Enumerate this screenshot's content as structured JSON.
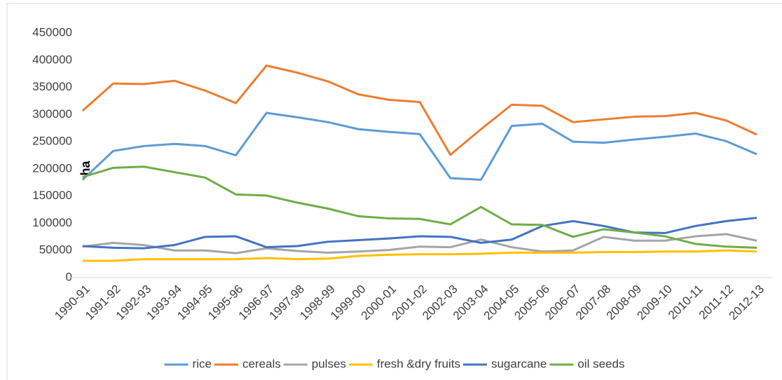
{
  "chart_data": {
    "type": "line",
    "y_label": "ha",
    "categories": [
      "1990-91",
      "1991-92",
      "1992-93",
      "1993-94",
      "1994-95",
      "1995-96",
      "1996-97",
      "1997-98",
      "1998-99",
      "1999-00",
      "2000-01",
      "2001-02",
      "2002-03",
      "2003-04",
      "2004-05",
      "2005-06",
      "2006-07",
      "2007-08",
      "2008-09",
      "2009-10",
      "2010-11",
      "2011-12",
      "2012-13"
    ],
    "series": [
      {
        "name": "rice",
        "color": "#5b9bd5",
        "values": [
          180000,
          233000,
          242000,
          246000,
          242000,
          225000,
          303000,
          295000,
          286000,
          273000,
          268000,
          264000,
          183000,
          180000,
          279000,
          283000,
          250000,
          248000,
          254000,
          259000,
          265000,
          251000,
          227000
        ]
      },
      {
        "name": "cereals",
        "color": "#ed7d31",
        "values": [
          307000,
          357000,
          356000,
          362000,
          344000,
          321000,
          390000,
          377000,
          361000,
          337000,
          327000,
          323000,
          226000,
          273000,
          318000,
          316000,
          286000,
          291000,
          296000,
          297000,
          303000,
          289000,
          263000
        ]
      },
      {
        "name": "pulses",
        "color": "#a5a5a5",
        "values": [
          57000,
          64000,
          60000,
          50000,
          50000,
          45000,
          54000,
          49000,
          46000,
          48000,
          51000,
          57000,
          56000,
          70000,
          56000,
          48000,
          50000,
          75000,
          68000,
          68000,
          76000,
          80000,
          68000
        ]
      },
      {
        "name": "fresh &dry fruits",
        "color": "#ffc000",
        "values": [
          31000,
          31000,
          34000,
          34000,
          34000,
          34000,
          36000,
          34000,
          35000,
          40000,
          42000,
          43000,
          43000,
          44000,
          46000,
          46000,
          46000,
          47000,
          47000,
          48000,
          48000,
          50000,
          48000
        ]
      },
      {
        "name": "sugarcane",
        "color": "#4472c4",
        "values": [
          58000,
          55000,
          54000,
          60000,
          75000,
          76000,
          56000,
          58000,
          66000,
          69000,
          72000,
          76000,
          75000,
          64000,
          70000,
          95000,
          104000,
          95000,
          83000,
          82000,
          95000,
          104000,
          110000
        ]
      },
      {
        "name": "oil seeds",
        "color": "#70ad47",
        "values": [
          185000,
          202000,
          204000,
          194000,
          184000,
          153000,
          151000,
          138000,
          127000,
          113000,
          109000,
          108000,
          98000,
          130000,
          98000,
          97000,
          75000,
          89000,
          83000,
          76000,
          62000,
          57000,
          55000
        ]
      }
    ],
    "ylim": [
      0,
      450000
    ],
    "yticks": [
      0,
      50000,
      100000,
      150000,
      200000,
      250000,
      300000,
      350000,
      400000,
      450000
    ],
    "legend": "bottom"
  }
}
